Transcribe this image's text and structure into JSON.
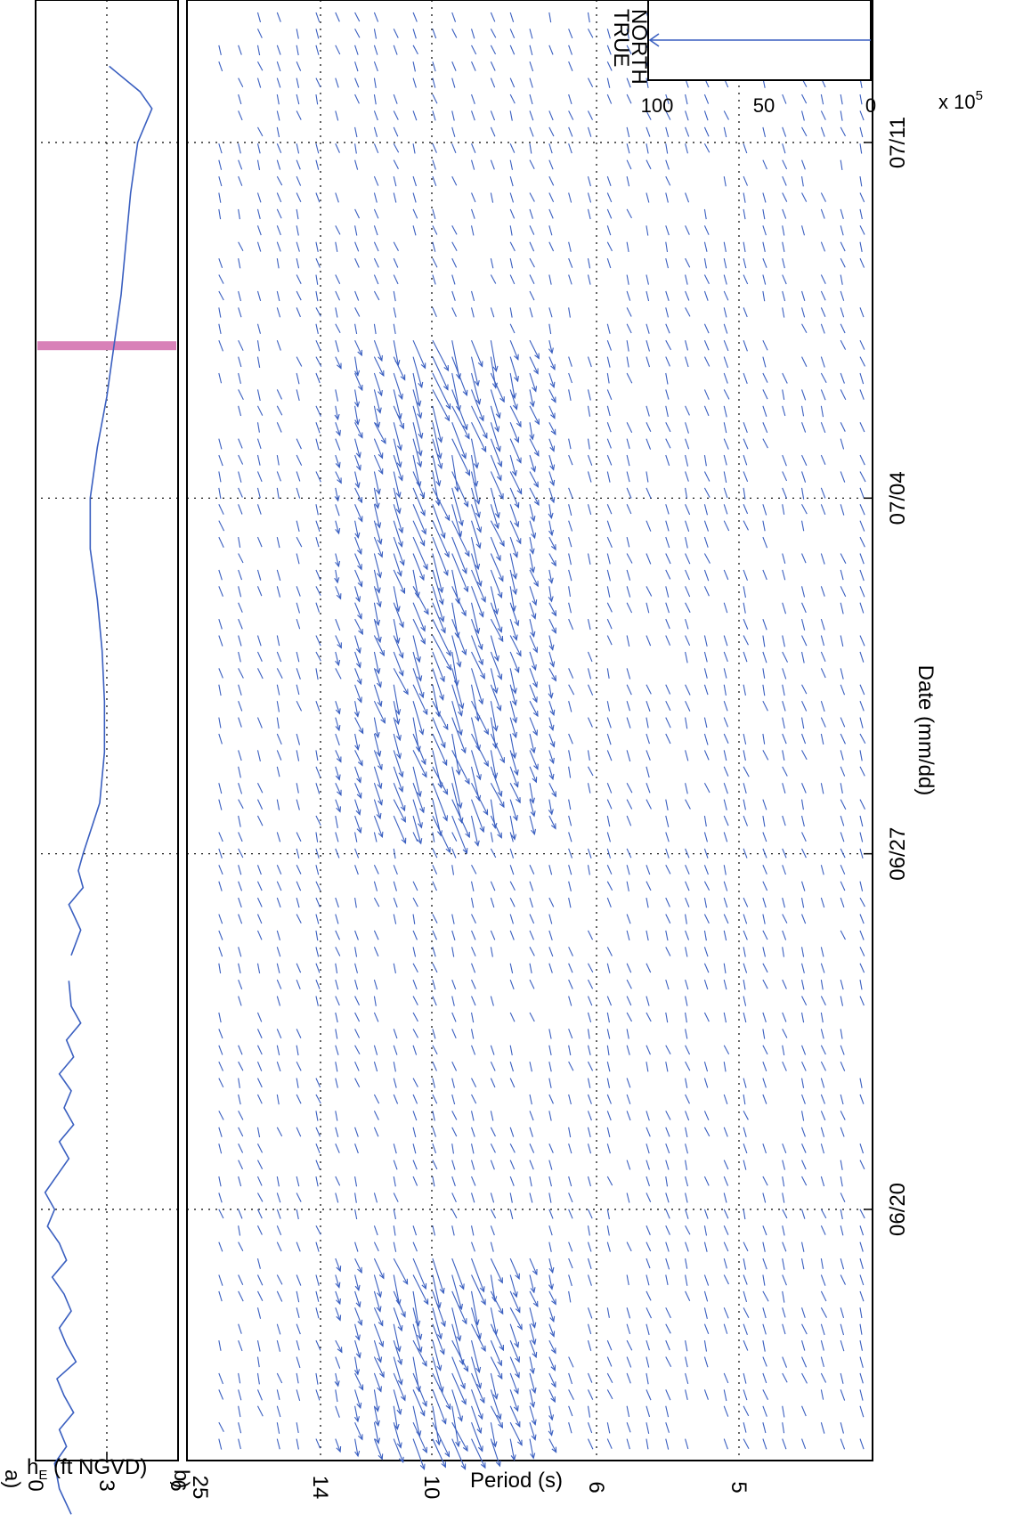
{
  "chart_data": [
    {
      "panel_label": "a)",
      "type": "line",
      "ylabel_main": "h",
      "ylabel_sub": "E",
      "ylabel_rest": " (ft NGVD)",
      "xlabel": "",
      "ylim": [
        0,
        6
      ],
      "yticks": [
        0,
        3,
        6
      ],
      "xlim": [
        "06/14",
        "07/13"
      ],
      "grid": true,
      "color": "#3a5fc0",
      "highlight": {
        "date": "07/07",
        "color": "#d881b8"
      },
      "segments": [
        {
          "x": [
            "06/14",
            "06/14",
            "06/15",
            "06/15",
            "06/15",
            "06/16",
            "06/16",
            "06/16",
            "06/17",
            "06/17",
            "06/17",
            "06/18",
            "06/18",
            "06/18",
            "06/19",
            "06/19",
            "06/19",
            "06/20",
            "06/20",
            "06/20",
            "06/21",
            "06/21",
            "06/21",
            "06/22",
            "06/22",
            "06/22",
            "06/23",
            "06/23",
            "06/23",
            "06/24",
            "06/24"
          ],
          "y": [
            1.5,
            1.0,
            0.8,
            1.3,
            1.0,
            1.6,
            1.2,
            0.9,
            1.7,
            1.3,
            1.0,
            1.5,
            1.2,
            0.7,
            1.3,
            1.0,
            0.5,
            0.8,
            0.4,
            0.9,
            1.4,
            1.0,
            1.6,
            1.2,
            1.5,
            1.0,
            1.6,
            1.3,
            1.9,
            1.5,
            1.4
          ]
        },
        {
          "x": [
            "06/25",
            "06/25",
            "06/26",
            "06/26",
            "06/26",
            "06/27",
            "06/28",
            "06/29",
            "06/30",
            "07/01",
            "07/02",
            "07/03",
            "07/04",
            "07/05",
            "07/06",
            "07/07",
            "07/08",
            "07/09",
            "07/10",
            "07/11",
            "07/11",
            "07/11",
            "07/12",
            "07/12"
          ],
          "y": [
            1.5,
            1.9,
            1.4,
            2.0,
            1.8,
            2.0,
            2.7,
            2.9,
            2.9,
            2.8,
            2.6,
            2.3,
            2.3,
            2.6,
            3.0,
            3.3,
            3.6,
            3.8,
            4.0,
            4.3,
            4.6,
            4.9,
            4.4,
            3.1
          ]
        }
      ]
    },
    {
      "panel_label": "b)",
      "type": "quiver",
      "title": "",
      "xlabel": "Date (mm/dd)",
      "ylabel": "Period (s)",
      "yticklabels": [
        "25",
        "14",
        "10",
        "6",
        "5"
      ],
      "xticklabels": [
        "06/20",
        "06/27",
        "07/04",
        "07/11"
      ],
      "grid": true,
      "color": "#3a5fc0",
      "energy_groups": [
        {
          "start": "06/14",
          "end": "06/19",
          "peak_period": 10
        },
        {
          "start": "06/28",
          "end": "07/07",
          "peak_period": 10
        }
      ],
      "inset": {
        "label_line1": "TRUE",
        "label_line2": "NORTH",
        "yticklabels": [
          "0",
          "50",
          "100"
        ],
        "exponent_base": "x 10",
        "exponent_power": "5"
      }
    }
  ]
}
